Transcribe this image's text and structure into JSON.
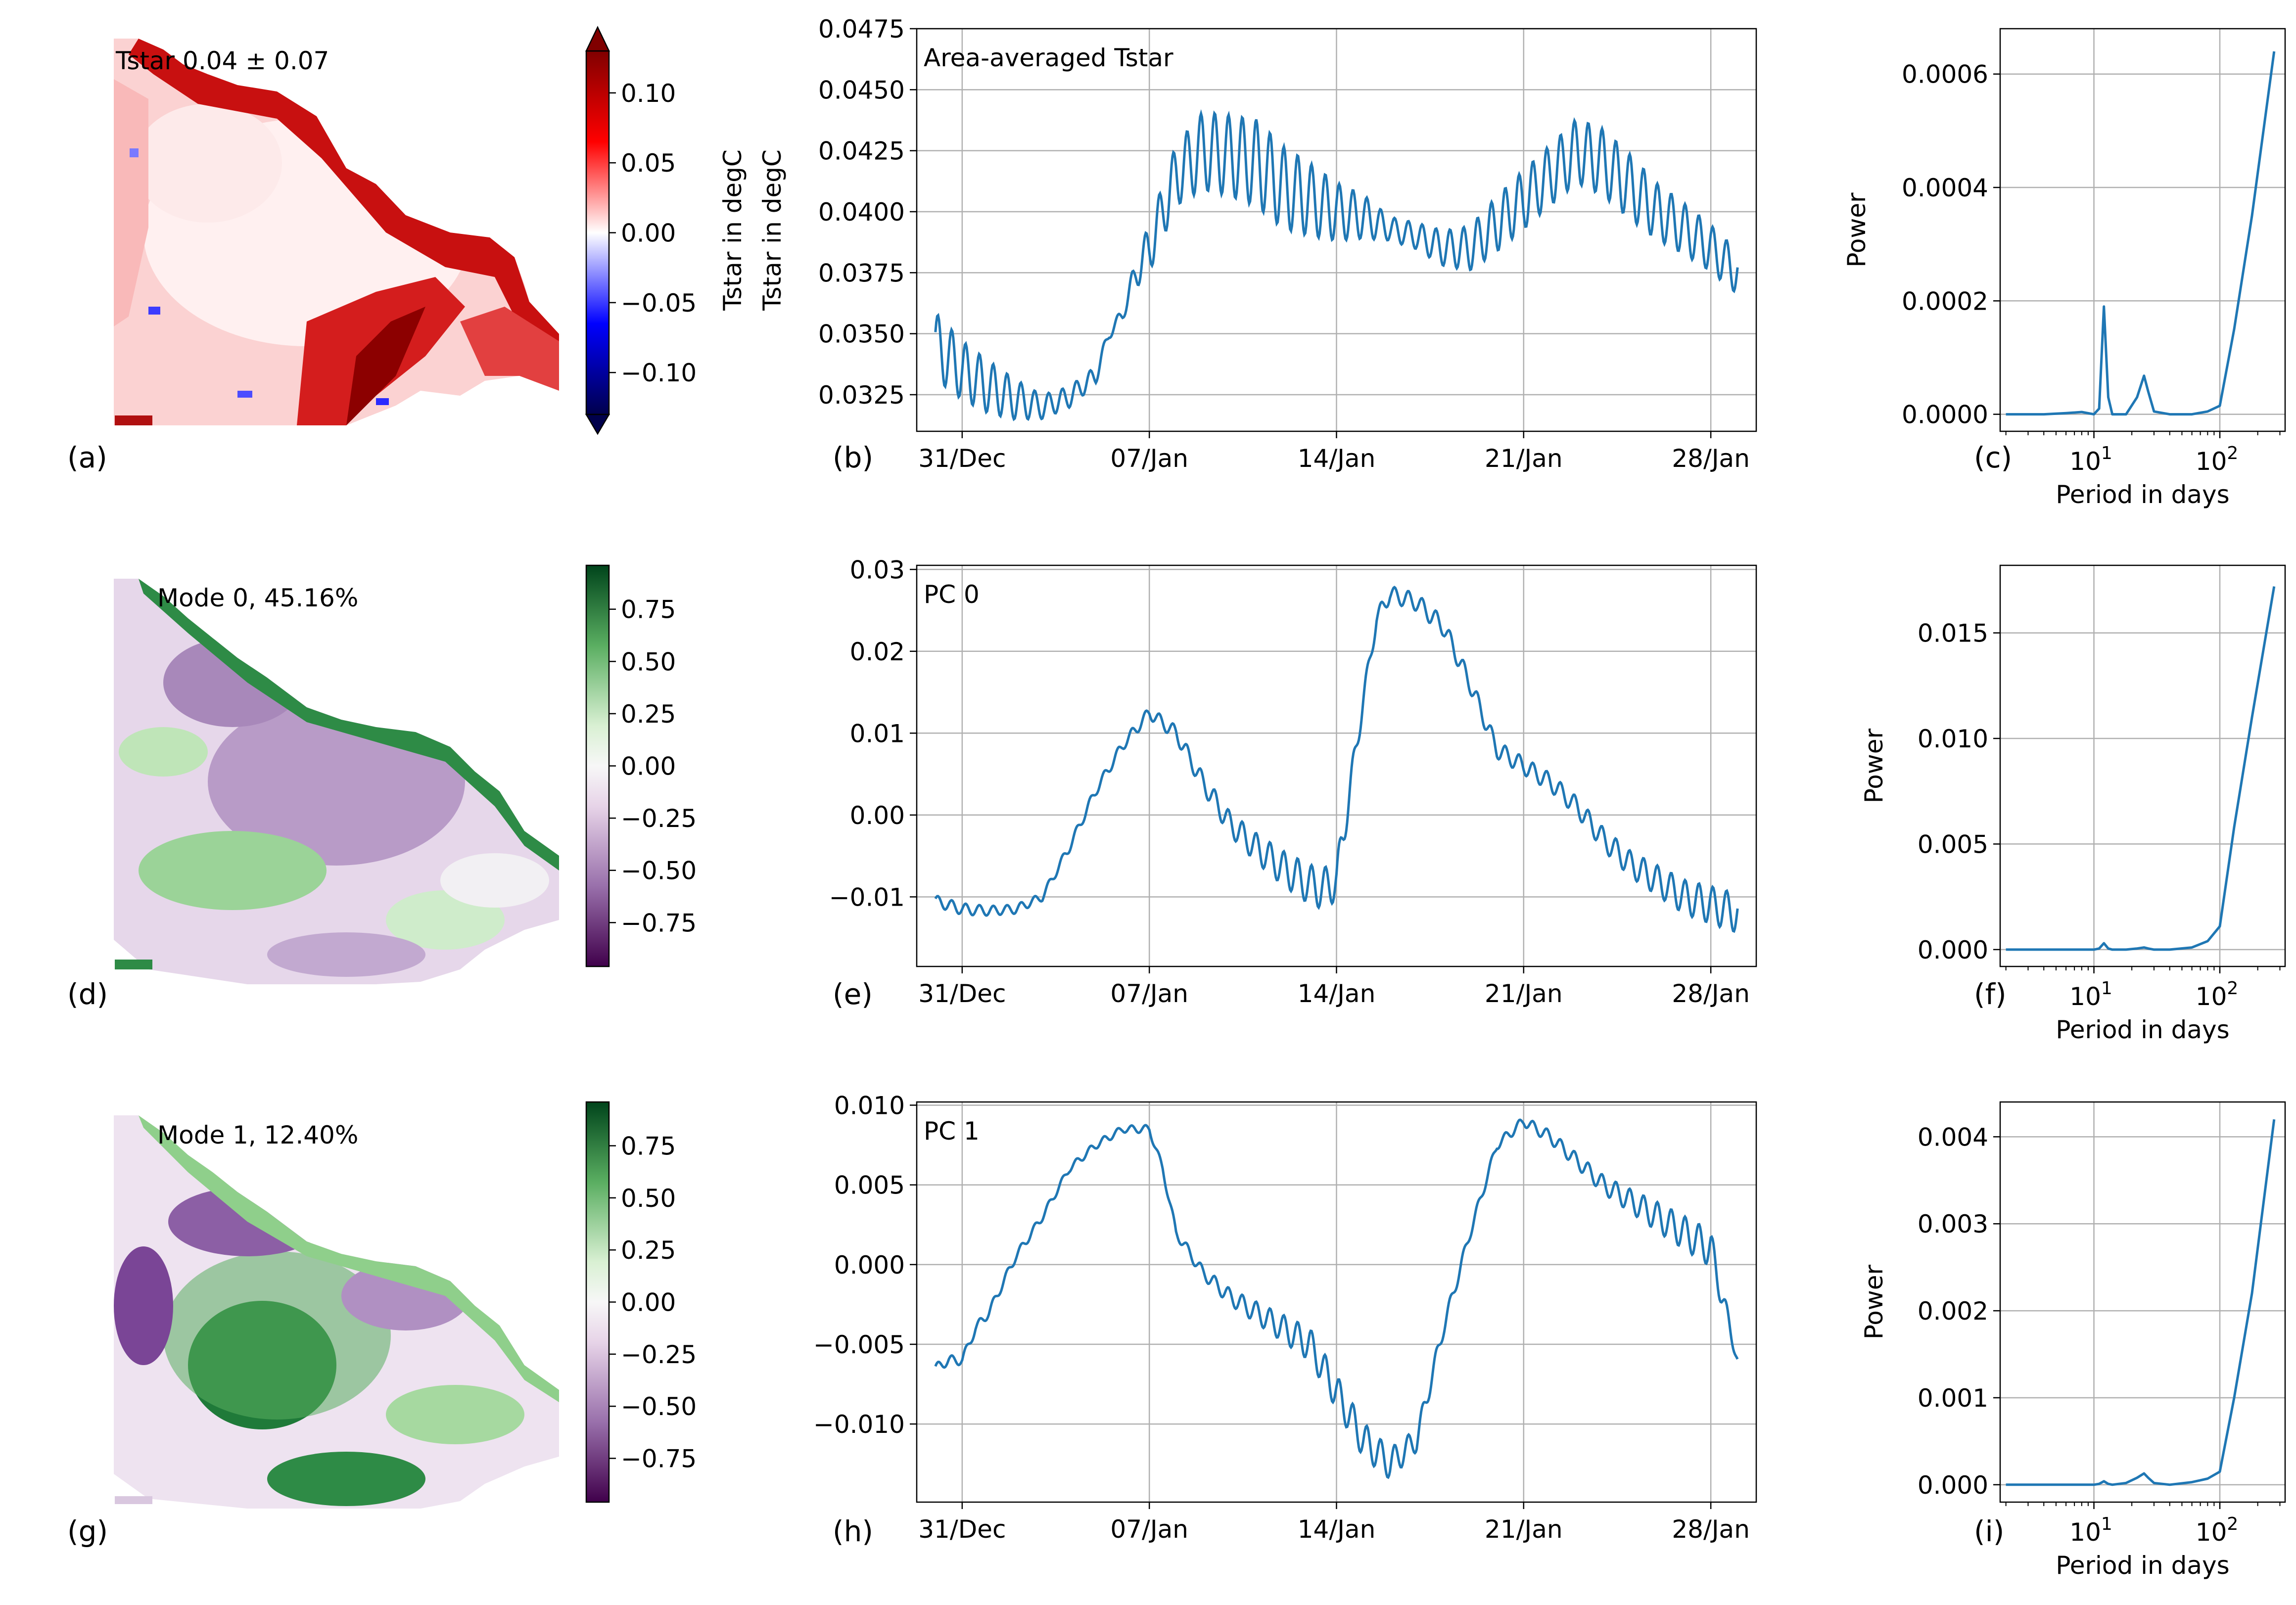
{
  "colors": {
    "line": "#1f77b4",
    "grid": "#b0b0b0",
    "axes": "#000000"
  },
  "panel_labels": [
    "(a)",
    "(b)",
    "(c)",
    "(d)",
    "(e)",
    "(f)",
    "(g)",
    "(h)",
    "(i)"
  ],
  "chart_data": [
    {
      "panel": "(a)",
      "type": "heatmap",
      "annotation": "Tstar 0.04 ± 0.07",
      "colormap": "seismic",
      "colorbar_extend": "both",
      "colorbar_ticks": [
        0.1,
        0.05,
        0.0,
        -0.05,
        -0.1
      ],
      "colorbar_tick_labels": [
        "0.10",
        "0.05",
        "0.00",
        "−0.05",
        "−0.10"
      ],
      "clim": [
        -0.13,
        0.13
      ]
    },
    {
      "panel": "(b)",
      "type": "line",
      "annotation": "Area-averaged Tstar",
      "ylabel_lines": [
        "Tstar in degC",
        "Tstar in degC"
      ],
      "xlim": [
        -1.7,
        29.7
      ],
      "ylim": [
        0.031,
        0.0475
      ],
      "xticks": [
        0,
        7,
        14,
        21,
        28
      ],
      "xtick_labels": [
        "31/Dec",
        "07/Jan",
        "14/Jan",
        "21/Jan",
        "28/Jan"
      ],
      "yticks": [
        0.0325,
        0.035,
        0.0375,
        0.04,
        0.0425,
        0.045,
        0.0475
      ],
      "ytick_labels": [
        "0.0325",
        "0.0350",
        "0.0375",
        "0.0400",
        "0.0425",
        "0.0450",
        "0.0475"
      ],
      "grid": true,
      "series_note": "hourly series with ~12.4 h tidal oscillation",
      "x": [
        -1.0,
        0.0,
        1.0,
        2.0,
        3.0,
        4.0,
        5.0,
        5.5,
        6.0,
        6.5,
        7.0,
        8.0,
        9.0,
        10.0,
        11.0,
        12.0,
        13.0,
        14.0,
        15.0,
        16.0,
        17.0,
        18.0,
        19.0,
        20.0,
        21.0,
        22.0,
        23.0,
        24.0,
        25.0,
        26.0,
        27.0,
        28.0,
        29.0
      ],
      "y": [
        0.0345,
        0.0335,
        0.0328,
        0.0323,
        0.032,
        0.0324,
        0.0333,
        0.035,
        0.0358,
        0.0375,
        0.0385,
        0.0415,
        0.0425,
        0.0423,
        0.042,
        0.041,
        0.0405,
        0.04,
        0.0398,
        0.0393,
        0.039,
        0.0385,
        0.0385,
        0.0395,
        0.0405,
        0.0415,
        0.0425,
        0.042,
        0.041,
        0.04,
        0.0393,
        0.0385,
        0.0375
      ],
      "amplitude": [
        0.0014,
        0.0012,
        0.0011,
        0.0009,
        0.0006,
        0.0006,
        0.0006,
        0.0004,
        0.0005,
        0.0012,
        0.002,
        0.0025,
        0.0029,
        0.0026,
        0.0024,
        0.002,
        0.0016,
        0.0012,
        0.0009,
        0.0005,
        0.0006,
        0.0009,
        0.0013,
        0.0019,
        0.0023,
        0.0025,
        0.0026,
        0.0024,
        0.002,
        0.0015,
        0.0012,
        0.001,
        0.0009
      ]
    },
    {
      "panel": "(c)",
      "type": "line",
      "xlabel": "Period in days",
      "ylabel": "Power",
      "xscale": "log",
      "xlim": [
        1.8,
        330
      ],
      "ylim": [
        -3e-05,
        0.00068
      ],
      "yticks": [
        0.0,
        0.0002,
        0.0004,
        0.0006
      ],
      "ytick_labels": [
        "0.0000",
        "0.0002",
        "0.0004",
        "0.0006"
      ],
      "xticks": [
        10,
        100
      ],
      "xtick_bases": [
        "10",
        "10"
      ],
      "xtick_exps": [
        "1",
        "2"
      ],
      "grid": true,
      "x": [
        2,
        4,
        6,
        8,
        10,
        11,
        12,
        13,
        14,
        18,
        22,
        25,
        27,
        30,
        40,
        60,
        80,
        100,
        130,
        180,
        270
      ],
      "y": [
        0.0,
        0.0,
        2e-06,
        4e-06,
        0.0,
        1e-05,
        0.00019,
        3e-05,
        0.0,
        0.0,
        3e-05,
        6.8e-05,
        4e-05,
        5e-06,
        0.0,
        0.0,
        5e-06,
        1.5e-05,
        0.00015,
        0.00035,
        0.00064
      ]
    },
    {
      "panel": "(d)",
      "type": "heatmap",
      "annotation": "Mode 0, 45.16%",
      "colormap": "PRGn",
      "colorbar_ticks": [
        0.75,
        0.5,
        0.25,
        0.0,
        -0.25,
        -0.5,
        -0.75
      ],
      "colorbar_tick_labels": [
        "0.75",
        "0.50",
        "0.25",
        "0.00",
        "−0.25",
        "−0.50",
        "−0.75"
      ],
      "clim": [
        -0.96,
        0.96
      ]
    },
    {
      "panel": "(e)",
      "type": "line",
      "annotation": "PC 0",
      "xlim": [
        -1.7,
        29.7
      ],
      "ylim": [
        -0.0185,
        0.0305
      ],
      "xticks": [
        0,
        7,
        14,
        21,
        28
      ],
      "xtick_labels": [
        "31/Dec",
        "07/Jan",
        "14/Jan",
        "21/Jan",
        "28/Jan"
      ],
      "yticks": [
        -0.01,
        0.0,
        0.01,
        0.02,
        0.03
      ],
      "ytick_labels": [
        "−0.01",
        "0.00",
        "0.01",
        "0.02",
        "0.03"
      ],
      "grid": true,
      "x": [
        -1.0,
        0.0,
        1.0,
        2.0,
        3.0,
        4.0,
        5.0,
        6.0,
        7.0,
        8.0,
        9.0,
        10.0,
        11.0,
        12.0,
        13.0,
        13.5,
        14.0,
        14.5,
        15.0,
        15.5,
        16.0,
        17.0,
        18.0,
        19.0,
        20.0,
        21.0,
        22.0,
        23.0,
        24.0,
        25.0,
        26.0,
        27.0,
        28.0,
        29.0
      ],
      "y": [
        -0.0105,
        -0.0115,
        -0.0117,
        -0.0115,
        -0.01,
        -0.004,
        0.003,
        0.0085,
        0.0125,
        0.01,
        0.004,
        -0.001,
        -0.004,
        -0.0065,
        -0.0085,
        -0.009,
        -0.008,
        0.003,
        0.014,
        0.024,
        0.027,
        0.026,
        0.023,
        0.016,
        0.008,
        0.006,
        0.004,
        0.001,
        -0.003,
        -0.006,
        -0.008,
        -0.01,
        -0.011,
        -0.012
      ],
      "amplitude": [
        0.0007,
        0.0007,
        0.0006,
        0.0006,
        0.0006,
        0.0008,
        0.001,
        0.0012,
        0.0015,
        0.0018,
        0.0021,
        0.0023,
        0.0024,
        0.0025,
        0.0026,
        0.0026,
        0.0025,
        0.0018,
        0.0012,
        0.001,
        0.001,
        0.0012,
        0.0014,
        0.0016,
        0.0018,
        0.002,
        0.0022,
        0.0023,
        0.0024,
        0.0024,
        0.0024,
        0.0024,
        0.0024,
        0.0024
      ]
    },
    {
      "panel": "(f)",
      "type": "line",
      "xlabel": "Period in days",
      "ylabel": "Power",
      "xscale": "log",
      "xlim": [
        1.8,
        330
      ],
      "ylim": [
        -0.0008,
        0.0182
      ],
      "yticks": [
        0.0,
        0.005,
        0.01,
        0.015
      ],
      "ytick_labels": [
        "0.000",
        "0.005",
        "0.010",
        "0.015"
      ],
      "xticks": [
        10,
        100
      ],
      "xtick_bases": [
        "10",
        "10"
      ],
      "xtick_exps": [
        "1",
        "2"
      ],
      "grid": true,
      "x": [
        2,
        4,
        6,
        8,
        10,
        11,
        12,
        13,
        14,
        18,
        22,
        25,
        27,
        30,
        40,
        60,
        80,
        100,
        130,
        180,
        270
      ],
      "y": [
        0.0,
        0.0,
        0.0,
        0.0,
        0.0,
        5e-05,
        0.0003,
        5e-05,
        0.0,
        0.0,
        5e-05,
        0.0001,
        5e-05,
        0.0,
        0.0,
        0.0001,
        0.0004,
        0.0011,
        0.0058,
        0.011,
        0.0172
      ]
    },
    {
      "panel": "(g)",
      "type": "heatmap",
      "annotation": "Mode 1, 12.40%",
      "colormap": "PRGn",
      "colorbar_ticks": [
        0.75,
        0.5,
        0.25,
        0.0,
        -0.25,
        -0.5,
        -0.75
      ],
      "colorbar_tick_labels": [
        "0.75",
        "0.50",
        "0.25",
        "0.00",
        "−0.25",
        "−0.50",
        "−0.75"
      ],
      "clim": [
        -0.96,
        0.96
      ]
    },
    {
      "panel": "(h)",
      "type": "line",
      "annotation": "PC 1",
      "xlim": [
        -1.7,
        29.7
      ],
      "ylim": [
        -0.0149,
        0.0102
      ],
      "xticks": [
        0,
        7,
        14,
        21,
        28
      ],
      "xtick_labels": [
        "31/Dec",
        "07/Jan",
        "14/Jan",
        "21/Jan",
        "28/Jan"
      ],
      "yticks": [
        -0.01,
        -0.005,
        0.0,
        0.005,
        0.01
      ],
      "ytick_labels": [
        "−0.010",
        "−0.005",
        "0.000",
        "0.005",
        "0.010"
      ],
      "grid": true,
      "x": [
        -1.0,
        -0.5,
        0.0,
        0.5,
        1.0,
        2.0,
        3.0,
        4.0,
        5.0,
        6.0,
        7.0,
        7.5,
        8.0,
        9.0,
        10.0,
        11.0,
        12.0,
        13.0,
        14.0,
        15.0,
        16.0,
        17.0,
        18.0,
        19.0,
        20.0,
        21.0,
        22.0,
        23.0,
        24.0,
        25.0,
        26.0,
        27.0,
        28.0,
        29.0
      ],
      "y": [
        -0.0065,
        -0.006,
        -0.006,
        -0.004,
        -0.003,
        0.0005,
        0.003,
        0.006,
        0.0075,
        0.0085,
        0.0085,
        0.006,
        0.002,
        -0.0005,
        -0.002,
        -0.003,
        -0.004,
        -0.005,
        -0.008,
        -0.011,
        -0.0125,
        -0.011,
        -0.004,
        0.002,
        0.0075,
        0.009,
        0.008,
        0.0065,
        0.005,
        0.004,
        0.003,
        0.002,
        0.001,
        -0.006
      ],
      "amplitude": [
        0.0003,
        0.0003,
        0.0003,
        0.0003,
        0.0003,
        0.0003,
        0.0003,
        0.0003,
        0.0004,
        0.0004,
        0.0005,
        0.0005,
        0.0006,
        0.0007,
        0.0008,
        0.0009,
        0.001,
        0.0011,
        0.0011,
        0.0011,
        0.001,
        0.0008,
        0.0006,
        0.0005,
        0.0005,
        0.0006,
        0.0008,
        0.0009,
        0.001,
        0.0011,
        0.0012,
        0.0012,
        0.0012,
        0.0003
      ]
    },
    {
      "panel": "(i)",
      "type": "line",
      "xlabel": "Period in days",
      "ylabel": "Power",
      "xscale": "log",
      "xlim": [
        1.8,
        330
      ],
      "ylim": [
        -0.0002,
        0.0044
      ],
      "yticks": [
        0.0,
        0.001,
        0.002,
        0.003,
        0.004
      ],
      "ytick_labels": [
        "0.000",
        "0.001",
        "0.002",
        "0.003",
        "0.004"
      ],
      "xticks": [
        10,
        100
      ],
      "xtick_bases": [
        "10",
        "10"
      ],
      "xtick_exps": [
        "1",
        "2"
      ],
      "grid": true,
      "x": [
        2,
        4,
        6,
        8,
        10,
        11,
        12,
        13,
        14,
        18,
        22,
        25,
        27,
        30,
        40,
        60,
        80,
        100,
        130,
        180,
        270
      ],
      "y": [
        0.0,
        0.0,
        0.0,
        0.0,
        0.0,
        1e-05,
        4e-05,
        1e-05,
        0.0,
        2e-05,
        8e-05,
        0.00013,
        8e-05,
        2e-05,
        0.0,
        3e-05,
        7e-05,
        0.00015,
        0.001,
        0.0022,
        0.0042
      ]
    }
  ]
}
